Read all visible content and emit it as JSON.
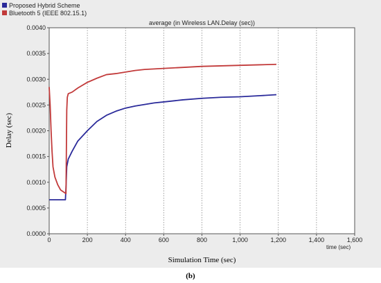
{
  "chart_data": {
    "type": "line",
    "title": "average (in Wireless LAN.Delay (sec))",
    "xlabel": "Simulation Time (sec)",
    "x_unit_label": "time (sec)",
    "ylabel": "Delay (sec)",
    "caption": "(b)",
    "xlim": [
      0,
      1600
    ],
    "ylim": [
      0,
      0.004
    ],
    "x_ticks": [
      0,
      200,
      400,
      600,
      800,
      1000,
      1200,
      1400,
      1600
    ],
    "x_tick_labels": [
      "0",
      "200",
      "400",
      "600",
      "800",
      "1,000",
      "1,200",
      "1,400",
      "1,600"
    ],
    "y_ticks": [
      0,
      0.0005,
      0.001,
      0.0015,
      0.002,
      0.0025,
      0.003,
      0.0035,
      0.004
    ],
    "y_tick_labels": [
      "0.0000",
      "0.0005",
      "0.0010",
      "0.0015",
      "0.0020",
      "0.0025",
      "0.0030",
      "0.0035",
      "0.0040"
    ],
    "grid": "vertical-dotted",
    "legend_position": "top-left",
    "series": [
      {
        "name": "Proposed Hybrid Scheme",
        "color": "#2a2a9a",
        "points": [
          [
            0,
            0.00066
          ],
          [
            50,
            0.00066
          ],
          [
            85,
            0.00066
          ],
          [
            88,
            0.0009
          ],
          [
            92,
            0.0013
          ],
          [
            100,
            0.00145
          ],
          [
            120,
            0.0016
          ],
          [
            150,
            0.0018
          ],
          [
            200,
            0.002
          ],
          [
            250,
            0.00218
          ],
          [
            300,
            0.0023
          ],
          [
            350,
            0.00238
          ],
          [
            400,
            0.00244
          ],
          [
            450,
            0.00248
          ],
          [
            500,
            0.00251
          ],
          [
            550,
            0.00254
          ],
          [
            600,
            0.00256
          ],
          [
            700,
            0.0026
          ],
          [
            800,
            0.00263
          ],
          [
            900,
            0.00265
          ],
          [
            1000,
            0.00266
          ],
          [
            1100,
            0.00268
          ],
          [
            1190,
            0.0027
          ]
        ]
      },
      {
        "name": "Bluetooth 5 (IEEE 802.15.1)",
        "color": "#c23a3a",
        "points": [
          [
            0,
            0.00285
          ],
          [
            5,
            0.0025
          ],
          [
            10,
            0.002
          ],
          [
            15,
            0.0016
          ],
          [
            20,
            0.0013
          ],
          [
            30,
            0.0011
          ],
          [
            45,
            0.00095
          ],
          [
            60,
            0.00085
          ],
          [
            80,
            0.0008
          ],
          [
            88,
            0.00078
          ],
          [
            92,
            0.0024
          ],
          [
            95,
            0.00265
          ],
          [
            100,
            0.00272
          ],
          [
            120,
            0.00275
          ],
          [
            150,
            0.00283
          ],
          [
            200,
            0.00294
          ],
          [
            250,
            0.00302
          ],
          [
            300,
            0.00309
          ],
          [
            350,
            0.00311
          ],
          [
            400,
            0.00314
          ],
          [
            450,
            0.00317
          ],
          [
            500,
            0.00319
          ],
          [
            550,
            0.0032
          ],
          [
            600,
            0.00321
          ],
          [
            700,
            0.00323
          ],
          [
            800,
            0.00325
          ],
          [
            900,
            0.00326
          ],
          [
            1000,
            0.00327
          ],
          [
            1100,
            0.00328
          ],
          [
            1190,
            0.00329
          ]
        ]
      }
    ]
  }
}
